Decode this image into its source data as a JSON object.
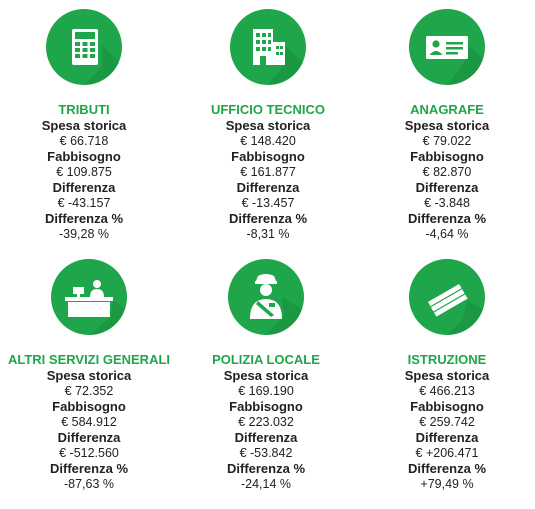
{
  "accent_color": "#1fa64a",
  "labels": {
    "spesa": "Spesa storica",
    "fabbisogno": "Fabbisogno",
    "differenza": "Differenza",
    "differenza_pct": "Differenza %"
  },
  "categories": [
    {
      "icon": "calculator-icon",
      "title": "TRIBUTI",
      "spesa": "€ 66.718",
      "fabbisogno": "€ 109.875",
      "differenza": "€ -43.157",
      "differenza_pct": "-39,28 %"
    },
    {
      "icon": "building-icon",
      "title": "UFFICIO TECNICO",
      "spesa": "€ 148.420",
      "fabbisogno": "€ 161.877",
      "differenza": "€ -13.457",
      "differenza_pct": "-8,31 %"
    },
    {
      "icon": "id-card-icon",
      "title": "ANAGRAFE",
      "spesa": "€ 79.022",
      "fabbisogno": "€ 82.870",
      "differenza": "€ -3.848",
      "differenza_pct": "-4,64 %"
    },
    {
      "icon": "desk-clerk-icon",
      "title": "ALTRI SERVIZI GENERALI",
      "spesa": "€ 72.352",
      "fabbisogno": "€ 584.912",
      "differenza": "€ -512.560",
      "differenza_pct": "-87,63 %"
    },
    {
      "icon": "police-officer-icon",
      "title": "POLIZIA LOCALE",
      "spesa": "€ 169.190",
      "fabbisogno": "€ 223.032",
      "differenza": "€ -53.842",
      "differenza_pct": "-24,14 %"
    },
    {
      "icon": "books-icon",
      "title": "ISTRUZIONE",
      "spesa": "€ 466.213",
      "fabbisogno": "€ 259.742",
      "differenza": "€ +206.471",
      "differenza_pct": "+79,49 %"
    }
  ]
}
